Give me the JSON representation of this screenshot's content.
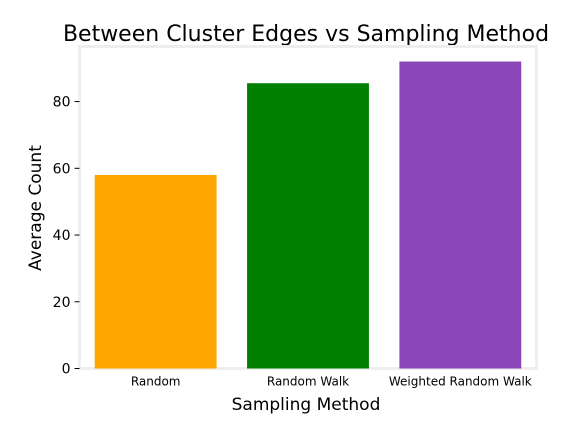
{
  "chart_data": {
    "type": "bar",
    "title": "Between Cluster Edges vs Sampling Method",
    "xlabel": "Sampling Method",
    "ylabel": "Average Count",
    "categories": [
      "Random",
      "Random Walk",
      "Weighted Random Walk"
    ],
    "values": [
      58,
      85.5,
      92
    ],
    "colors": [
      "#ffa500",
      "#008000",
      "#8b47b8"
    ],
    "ylim": [
      0,
      96.5
    ],
    "yticks": [
      0,
      20,
      40,
      60,
      80
    ],
    "ytick_labels": [
      "0",
      "20",
      "40",
      "60",
      "80"
    ],
    "grid": false,
    "frame_color": "#eeeeee"
  }
}
